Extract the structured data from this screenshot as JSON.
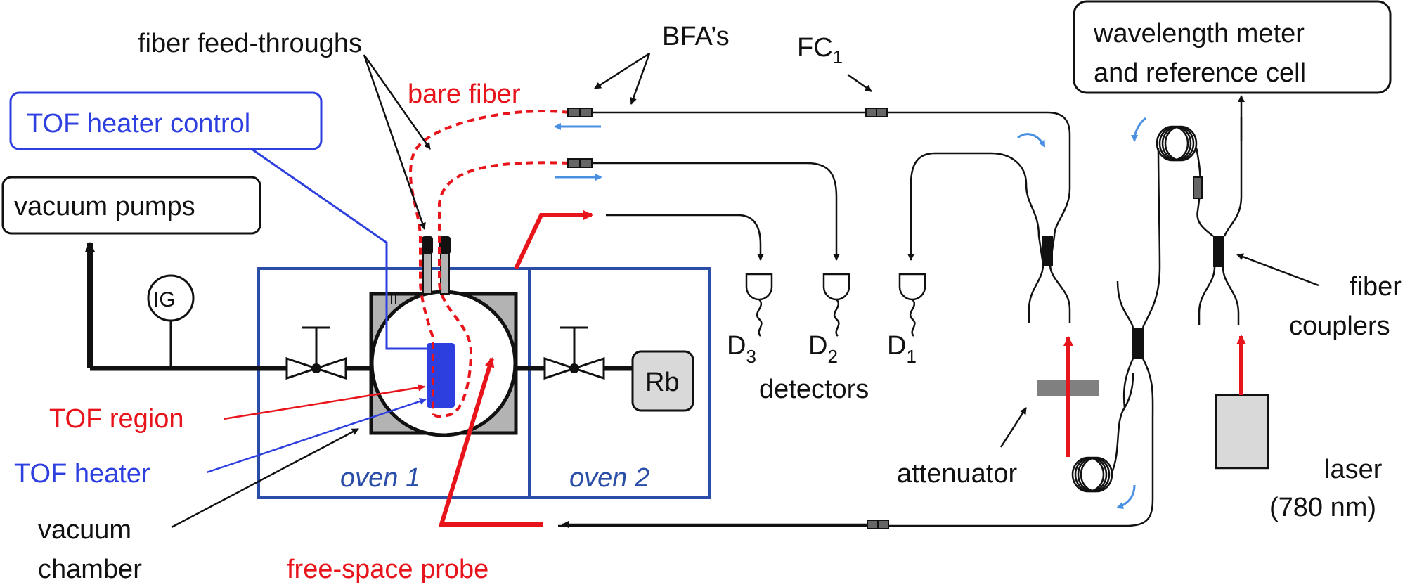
{
  "labels": {
    "fiber_feedthroughs": "fiber feed-throughs",
    "bfas": "BFA’s",
    "fc1_main": "FC",
    "fc1_sub": "1",
    "wavelength_meter_line1": "wavelength meter",
    "wavelength_meter_line2": "and reference cell",
    "bare_fiber": "bare fiber",
    "tof_heater_control": "TOF heater control",
    "vacuum_pumps": "vacuum pumps",
    "ig": "IG",
    "rb": "Rb",
    "d3_main": "D",
    "d3_sub": "3",
    "d2_main": "D",
    "d2_sub": "2",
    "d1_main": "D",
    "d1_sub": "1",
    "detectors": "detectors",
    "fiber_couplers_line1": "fiber",
    "fiber_couplers_line2": "couplers",
    "tof_region": "TOF region",
    "tof_heater": "TOF heater",
    "attenuator": "attenuator",
    "laser_line1": "laser",
    "laser_line2": "(780 nm)",
    "oven1": "oven 1",
    "oven2": "oven 2",
    "vacuum_chamber_line1": "vacuum",
    "vacuum_chamber_line2": "chamber",
    "free_space_probe": "free-space probe"
  },
  "colors": {
    "black": "#111111",
    "red": "#e8141c",
    "blue_heater": "#2e3fe0",
    "oven_blue": "#2a4ea8",
    "light_blue_arrow": "#4a90e2",
    "chamber_gray": "#b3b3b3",
    "rb_gray": "#d9d9d9",
    "laser_gray": "#d9d9d9",
    "attenuator_gray": "#808080"
  }
}
